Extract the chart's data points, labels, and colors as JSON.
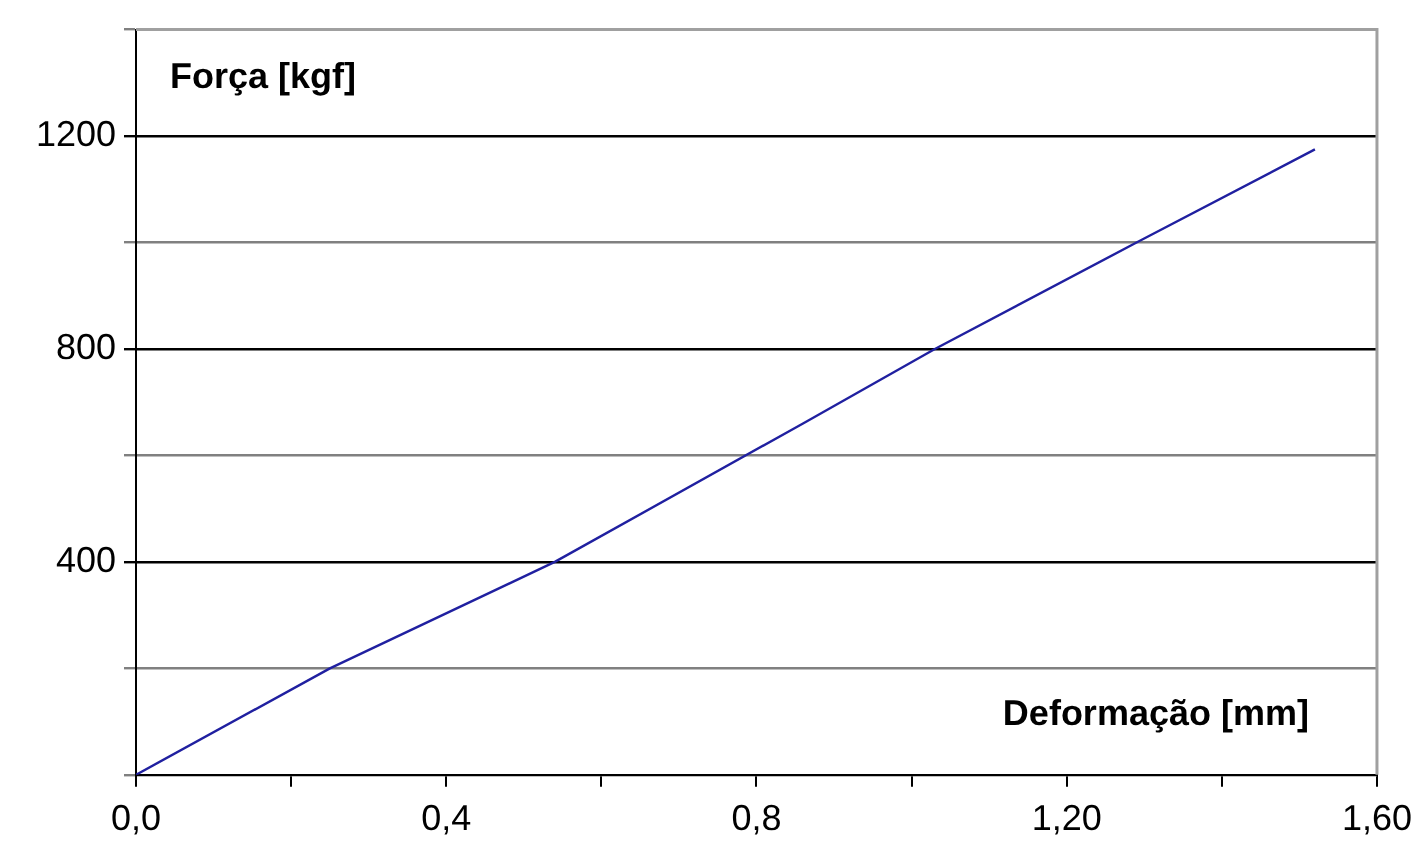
{
  "chart_data": {
    "type": "line",
    "xlabel": "Deformação [mm]",
    "ylabel": "Força [kgf]",
    "series": [
      {
        "color": "#2020a0",
        "x": [
          0,
          0.25,
          0.54,
          0.86,
          1.03,
          1.29,
          1.52
        ],
        "values": [
          0,
          200,
          400,
          660,
          800,
          1000,
          1175
        ]
      }
    ],
    "xlim": [
      0,
      1.6
    ],
    "xticks": [
      {
        "value": 0,
        "label": "0,0"
      },
      {
        "value": 0.2,
        "label": null
      },
      {
        "value": 0.4,
        "label": "0,4"
      },
      {
        "value": 0.6,
        "label": null
      },
      {
        "value": 0.8,
        "label": "0,8"
      },
      {
        "value": 1.0,
        "label": null
      },
      {
        "value": 1.2,
        "label": "1,20"
      },
      {
        "value": 1.4,
        "label": null
      },
      {
        "value": 1.6,
        "label": "1,60"
      }
    ],
    "ylim": [
      0,
      1400
    ],
    "yticks": [
      {
        "value": 0,
        "label": null
      },
      {
        "value": 200,
        "label": null
      },
      400,
      {
        "value": 600,
        "label": null
      },
      800,
      {
        "value": 1000,
        "label": null
      },
      1200,
      {
        "value": 1400,
        "label": null
      }
    ],
    "grid": "y",
    "marker": "none",
    "line_style": "solid",
    "legend": false
  }
}
